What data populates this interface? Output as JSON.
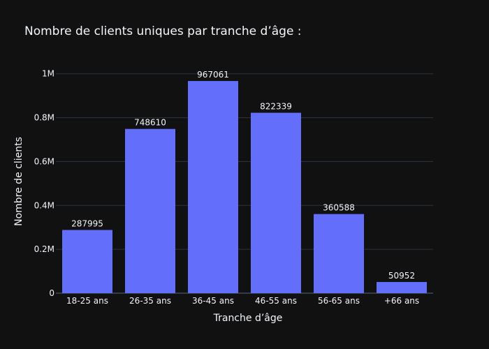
{
  "chart_data": {
    "type": "bar",
    "title": "Nombre de clients uniques par tranche d’âge :",
    "xlabel": "Tranche d’âge",
    "ylabel": "Nombre de clients",
    "categories": [
      "18-25 ans",
      "26-35 ans",
      "36-45 ans",
      "46-55 ans",
      "56-65 ans",
      "+66 ans"
    ],
    "values": [
      287995,
      748610,
      967061,
      822339,
      360588,
      50952
    ],
    "data_labels": [
      "287995",
      "748610",
      "967061",
      "822339",
      "360588",
      "50952"
    ],
    "ylim": [
      0,
      1050000
    ],
    "yticks": [
      0,
      200000,
      400000,
      600000,
      800000,
      1000000
    ],
    "ytick_labels": [
      "0",
      "0.2M",
      "0.4M",
      "0.6M",
      "0.8M",
      "1M"
    ],
    "grid": true,
    "legend": "none"
  },
  "colors": {
    "background": "#111111",
    "bar": "#636efa",
    "text": "#f2f5fa",
    "grid": "#283442",
    "axis_line": "#506784"
  }
}
